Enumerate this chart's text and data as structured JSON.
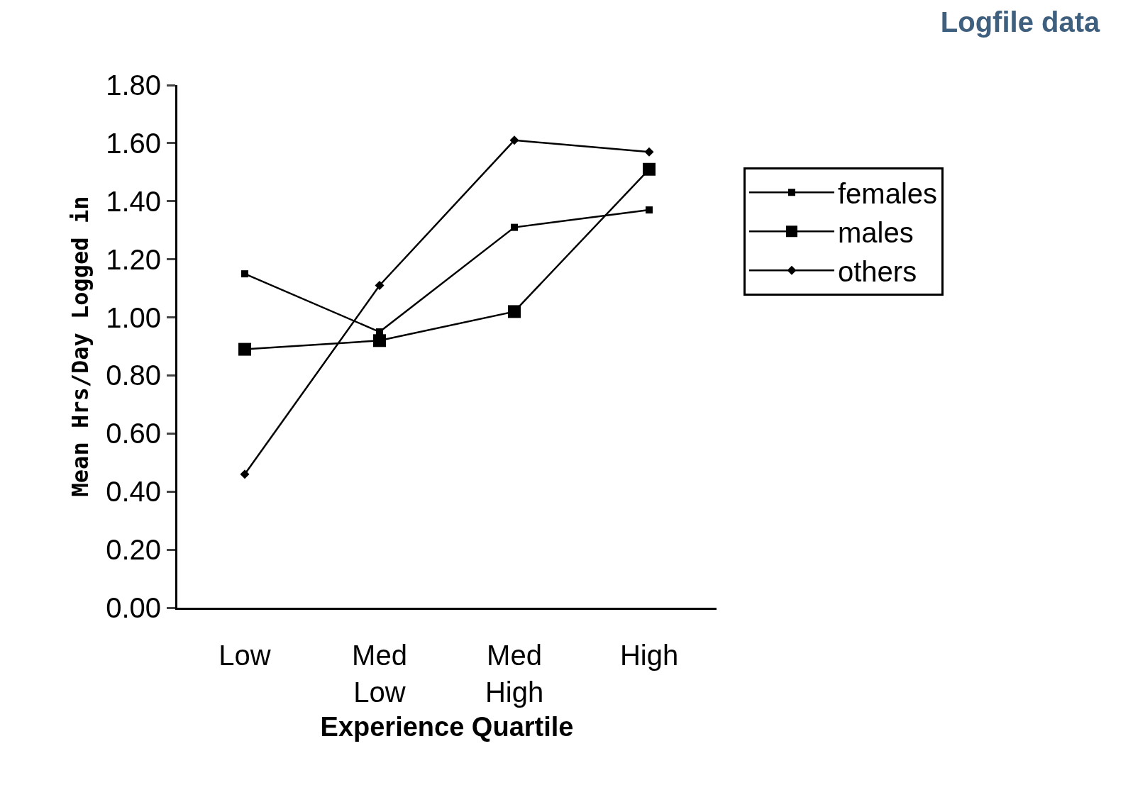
{
  "chart_data": {
    "type": "line",
    "title": "Logfile data",
    "xlabel": "Experience Quartile",
    "ylabel": "Mean Hrs/Day Logged in",
    "categories": [
      "Low",
      "Med\nLow",
      "Med\nHigh",
      "High"
    ],
    "series": [
      {
        "name": "females",
        "color": "#000000",
        "marker": "square",
        "values": [
          1.15,
          0.95,
          1.31,
          1.37
        ]
      },
      {
        "name": "males",
        "color": "#000000",
        "marker": "square",
        "values": [
          0.89,
          0.92,
          1.02,
          1.51
        ]
      },
      {
        "name": "others",
        "color": "#000000",
        "marker": "diamond",
        "values": [
          0.46,
          1.11,
          1.61,
          1.57
        ]
      }
    ],
    "ylim": [
      0,
      1.8
    ],
    "yticks": [
      {
        "value": 0,
        "label": "0.00"
      },
      {
        "value": 0.2,
        "label": "0.20"
      },
      {
        "value": 0.4,
        "label": "0.40"
      },
      {
        "value": 0.6,
        "label": "0.60"
      },
      {
        "value": 0.8,
        "label": "0.80"
      },
      {
        "value": 1.0,
        "label": "1.00"
      },
      {
        "value": 1.2,
        "label": "1.20"
      },
      {
        "value": 1.4,
        "label": "1.40"
      },
      {
        "value": 1.6,
        "label": "1.60"
      },
      {
        "value": 1.8,
        "label": "1.80"
      }
    ],
    "legend": "right",
    "line_style": "solid"
  }
}
